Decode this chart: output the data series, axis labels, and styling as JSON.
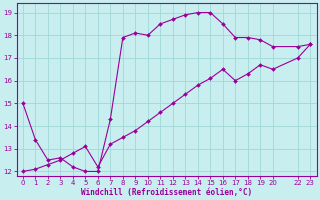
{
  "xlabel": "Windchill (Refroidissement éolien,°C)",
  "xlim": [
    -0.5,
    23.5
  ],
  "ylim": [
    11.8,
    19.4
  ],
  "xticks": [
    0,
    1,
    2,
    3,
    4,
    5,
    6,
    7,
    8,
    9,
    10,
    11,
    12,
    13,
    14,
    15,
    16,
    17,
    18,
    19,
    20,
    22,
    23
  ],
  "yticks": [
    12,
    13,
    14,
    15,
    16,
    17,
    18,
    19
  ],
  "line_color": "#990099",
  "bg_color": "#c8eef0",
  "grid_color": "#a0d8d8",
  "line1_x": [
    0,
    1,
    2,
    3,
    4,
    5,
    6,
    7,
    8,
    9,
    10,
    11,
    12,
    13,
    14,
    15,
    16,
    17,
    18,
    19,
    20,
    22,
    23
  ],
  "line1_y": [
    15.0,
    13.4,
    12.5,
    12.6,
    12.2,
    12.0,
    12.0,
    14.3,
    17.9,
    18.1,
    18.0,
    18.5,
    18.7,
    18.9,
    19.0,
    19.0,
    18.5,
    17.9,
    17.9,
    17.8,
    17.5,
    17.5,
    17.6
  ],
  "line2_x": [
    0,
    1,
    2,
    3,
    4,
    5,
    6,
    7,
    8,
    9,
    10,
    11,
    12,
    13,
    14,
    15,
    16,
    17,
    18,
    19,
    20,
    22,
    23
  ],
  "line2_y": [
    12.0,
    12.1,
    12.3,
    12.5,
    12.8,
    13.1,
    12.2,
    13.2,
    13.5,
    13.8,
    14.2,
    14.6,
    15.0,
    15.4,
    15.8,
    16.1,
    16.5,
    16.0,
    16.3,
    16.7,
    16.5,
    17.0,
    17.6
  ],
  "tick_fontsize": 5,
  "xlabel_fontsize": 5.5
}
